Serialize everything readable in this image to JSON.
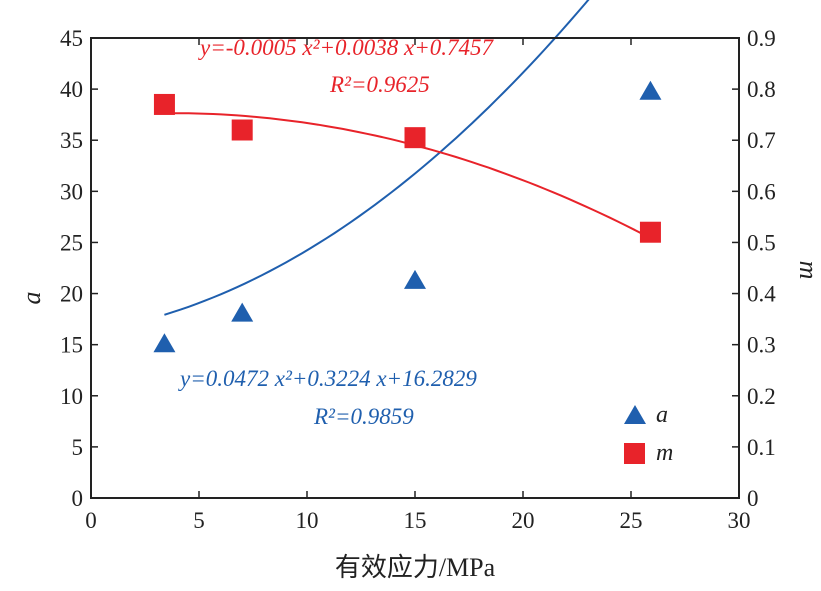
{
  "chart_data": {
    "type": "scatter",
    "xlabel": "有效应力/MPa",
    "ylabel_left": "a",
    "ylabel_right": "m",
    "xlim": [
      0,
      30
    ],
    "ylim_left": [
      0,
      45
    ],
    "ylim_right": [
      0,
      0.9
    ],
    "x_ticks": [
      0,
      5,
      10,
      15,
      20,
      25,
      30
    ],
    "y_left_ticks": [
      0,
      5,
      10,
      15,
      20,
      25,
      30,
      35,
      40,
      45
    ],
    "y_right_ticks": [
      "0",
      "0.1",
      "0.2",
      "0.3",
      "0.4",
      "0.5",
      "0.6",
      "0.7",
      "0.8",
      "0.9"
    ],
    "legend_position": "bottom-right",
    "series": [
      {
        "name": "a",
        "axis": "left",
        "marker": "triangle",
        "color": "#1f5fae",
        "x": [
          3.4,
          7.0,
          15.0,
          25.9
        ],
        "y": [
          15.0,
          18.0,
          21.2,
          39.7
        ],
        "fit": {
          "a2": 0.0472,
          "a1": 0.3224,
          "a0": 16.2829,
          "x_range": [
            3.4,
            25.9
          ]
        },
        "equation_line1": "y=0.0472 x²+0.3224 x+16.2829",
        "equation_line2": "R²=0.9859"
      },
      {
        "name": "m",
        "axis": "right",
        "marker": "square",
        "color": "#e8232a",
        "x": [
          3.4,
          7.0,
          15.0,
          25.9
        ],
        "y": [
          0.77,
          0.72,
          0.705,
          0.52
        ],
        "fit": {
          "a2": -0.0005,
          "a1": 0.0038,
          "a0": 0.7457,
          "x_range": [
            3.4,
            25.9
          ]
        },
        "equation_line1": "y=-0.0005 x²+0.0038 x+0.7457",
        "equation_line2": "R²=0.9625"
      }
    ]
  }
}
